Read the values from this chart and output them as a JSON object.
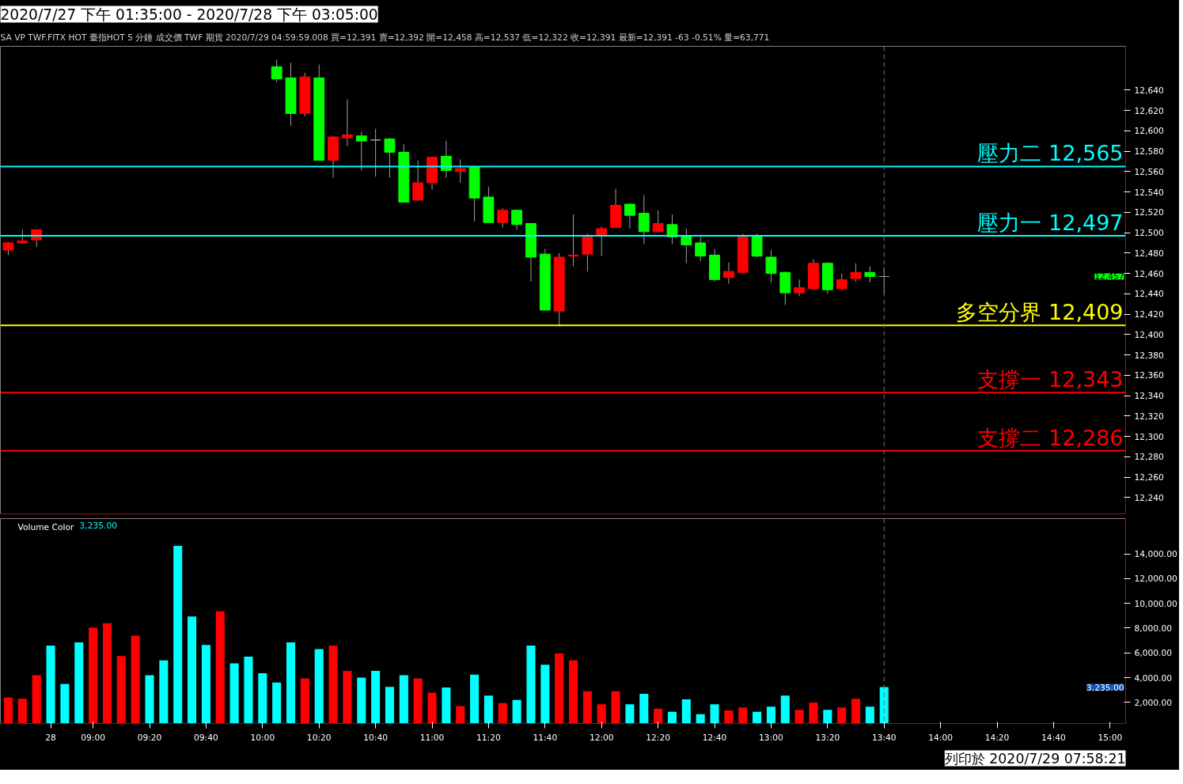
{
  "chart_data": [
    {
      "type": "candlestick",
      "title": "2020/7/27 下午 01:35:00 - 2020/7/28 下午 03:05:00",
      "subtitle": "SA  VP  TWF.FITX HOT  臺指HOT 5 分鐘  成交價  TWF  期貨  2020/7/29  04:59:59.008  買=12,391  賣=12,392  開=12,458  高=12,537  低=12,322  收=12,391  最新=12,391  -63  -0.51%  量=63,771",
      "categories": [
        null,
        null,
        null,
        "28",
        null,
        null,
        "09:00",
        null,
        null,
        null,
        "09:20",
        null,
        null,
        null,
        "09:40",
        null,
        null,
        null,
        "10:00",
        null,
        null,
        null,
        "10:20",
        null,
        null,
        null,
        "10:40",
        null,
        null,
        null,
        "11:00",
        null,
        null,
        null,
        "11:20",
        null,
        null,
        null,
        "11:40",
        null,
        null,
        null,
        "12:00",
        null,
        null,
        null,
        "12:20",
        null,
        null,
        null,
        "12:40",
        null,
        null,
        null,
        "13:00",
        null,
        null,
        null,
        "13:20",
        null,
        null,
        null,
        "13:40",
        null,
        null,
        null,
        "14:00",
        null,
        null,
        null,
        "14:20",
        null,
        null,
        null,
        "14:40",
        null,
        null,
        null,
        "15:00"
      ],
      "ohlc": [
        [
          12483,
          12491,
          12478,
          12490
        ],
        [
          12490,
          12503,
          12489,
          12492
        ],
        [
          12493,
          12503,
          12486,
          12503
        ],
        null,
        null,
        null,
        null,
        null,
        null,
        null,
        null,
        null,
        null,
        null,
        null,
        null,
        null,
        null,
        null,
        [
          12663,
          12670,
          12648,
          12651
        ],
        [
          12652,
          12667,
          12605,
          12617
        ],
        [
          12617,
          12657,
          12614,
          12653
        ],
        [
          12652,
          12665,
          12571,
          12571
        ],
        [
          12571,
          12595,
          12554,
          12594
        ],
        [
          12593,
          12631,
          12585,
          12596
        ],
        [
          12595,
          12599,
          12561,
          12590
        ],
        [
          12591,
          12602,
          12555,
          12591
        ],
        [
          12592,
          12593,
          12554,
          12579
        ],
        [
          12579,
          12587,
          12530,
          12530
        ],
        [
          12532,
          12571,
          12531,
          12549
        ],
        [
          12549,
          12574,
          12542,
          12574
        ],
        [
          12575,
          12590,
          12554,
          12561
        ],
        [
          12560,
          12572,
          12549,
          12563
        ],
        [
          12564,
          12564,
          12511,
          12534
        ],
        [
          12535,
          12545,
          12510,
          12510
        ],
        [
          12510,
          12524,
          12505,
          12522
        ],
        [
          12522,
          12523,
          12503,
          12508
        ],
        [
          12509,
          12509,
          12452,
          12476
        ],
        [
          12479,
          12484,
          12424,
          12424
        ],
        [
          12423,
          12480,
          12408,
          12476
        ],
        [
          12477,
          12518,
          12467,
          12478
        ],
        [
          12479,
          12499,
          12462,
          12496
        ],
        [
          12498,
          12506,
          12477,
          12504
        ],
        [
          12505,
          12543,
          12505,
          12527
        ],
        [
          12528,
          12529,
          12504,
          12517
        ],
        [
          12519,
          12537,
          12489,
          12501
        ],
        [
          12501,
          12522,
          12500,
          12509
        ],
        [
          12508,
          12518,
          12489,
          12496
        ],
        [
          12497,
          12504,
          12470,
          12488
        ],
        [
          12490,
          12496,
          12472,
          12477
        ],
        [
          12478,
          12484,
          12452,
          12454
        ],
        [
          12456,
          12471,
          12450,
          12462
        ],
        [
          12461,
          12499,
          12460,
          12496
        ],
        [
          12496,
          12499,
          12476,
          12477
        ],
        [
          12476,
          12483,
          12451,
          12460
        ],
        [
          12461,
          12462,
          12429,
          12441
        ],
        [
          12441,
          12454,
          12438,
          12446
        ],
        [
          12445,
          12474,
          12444,
          12470
        ],
        [
          12470,
          12471,
          12440,
          12444
        ],
        [
          12445,
          12460,
          12444,
          12454
        ],
        [
          12455,
          12470,
          12452,
          12461
        ],
        [
          12461,
          12467,
          12451,
          12457
        ],
        [
          12457,
          12466,
          12440,
          12457
        ],
        null,
        null,
        null,
        null,
        null,
        null,
        null,
        null,
        null,
        null,
        null,
        null,
        null,
        null,
        null,
        null
      ],
      "colors": [
        "#ff0000",
        "#ff0000",
        "#ff0000",
        null,
        null,
        null,
        null,
        null,
        null,
        null,
        null,
        null,
        null,
        null,
        null,
        null,
        null,
        null,
        null,
        "#00ff00",
        "#00ff00",
        "#ff0000",
        "#00ff00",
        "#ff0000",
        "#ff0000",
        "#00ff00",
        "#a0a0a0",
        "#00ff00",
        "#00ff00",
        "#ff0000",
        "#ff0000",
        "#00ff00",
        "#ff0000",
        "#00ff00",
        "#00ff00",
        "#ff0000",
        "#00ff00",
        "#00ff00",
        "#00ff00",
        "#ff0000",
        "#ff0000",
        "#ff0000",
        "#ff0000",
        "#ff0000",
        "#00ff00",
        "#00ff00",
        "#ff0000",
        "#00ff00",
        "#00ff00",
        "#00ff00",
        "#00ff00",
        "#ff0000",
        "#ff0000",
        "#00ff00",
        "#00ff00",
        "#00ff00",
        "#ff0000",
        "#ff0000",
        "#00ff00",
        "#ff0000",
        "#ff0000",
        "#00ff00",
        "#a0a0a0",
        null,
        null,
        null,
        null,
        null,
        null,
        null,
        null,
        null,
        null,
        null,
        null,
        null,
        null,
        null,
        null
      ],
      "ylim": [
        12224,
        12683
      ],
      "yticks": [
        {
          "value": 12240,
          "label": "12,240"
        },
        {
          "value": 12260,
          "label": "12,260"
        },
        {
          "value": 12280,
          "label": "12,280"
        },
        {
          "value": 12300,
          "label": "12,300"
        },
        {
          "value": 12320,
          "label": "12,320"
        },
        {
          "value": 12340,
          "label": "12,340"
        },
        {
          "value": 12360,
          "label": "12,360"
        },
        {
          "value": 12380,
          "label": "12,380"
        },
        {
          "value": 12400,
          "label": "12,400"
        },
        {
          "value": 12420,
          "label": "12,420"
        },
        {
          "value": 12440,
          "label": "12,440"
        },
        {
          "value": 12460,
          "label": "12,460"
        },
        {
          "value": 12480,
          "label": "12,480"
        },
        {
          "value": 12500,
          "label": "12,500"
        },
        {
          "value": 12520,
          "label": "12,520"
        },
        {
          "value": 12540,
          "label": "12,540"
        },
        {
          "value": 12560,
          "label": "12,560"
        },
        {
          "value": 12580,
          "label": "12,580"
        },
        {
          "value": 12600,
          "label": "12,600"
        },
        {
          "value": 12620,
          "label": "12,620"
        },
        {
          "value": 12640,
          "label": "12,640"
        }
      ],
      "tick_labels": "y",
      "grid": false,
      "ref_lines": [
        {
          "axis": "y",
          "value": 12565,
          "label": "壓力二 12,565",
          "color": "#00ffff"
        },
        {
          "axis": "y",
          "value": 12497,
          "label": "壓力一 12,497",
          "color": "#00ffff"
        },
        {
          "axis": "y",
          "value": 12409,
          "label": "多空分界 12,409",
          "color": "#ffff00"
        },
        {
          "axis": "y",
          "value": 12343,
          "label": "支撐一 12,343",
          "color": "#ff0000"
        },
        {
          "axis": "y",
          "value": 12286,
          "label": "支撐二 12,286",
          "color": "#ff0000"
        },
        {
          "axis": "x",
          "value": "13:40",
          "color": "#707070",
          "line_style": "dashed"
        }
      ],
      "annotations": [
        "12,457"
      ]
    },
    {
      "type": "bar",
      "title": "Volume Color",
      "subtitle": "3,235.00",
      "categories": [
        null,
        null,
        null,
        "28",
        null,
        null,
        "09:00",
        null,
        null,
        null,
        "09:20",
        null,
        null,
        null,
        "09:40",
        null,
        null,
        null,
        "10:00",
        null,
        null,
        null,
        "10:20",
        null,
        null,
        null,
        "10:40",
        null,
        null,
        null,
        "11:00",
        null,
        null,
        null,
        "11:20",
        null,
        null,
        null,
        "11:40",
        null,
        null,
        null,
        "12:00",
        null,
        null,
        null,
        "12:20",
        null,
        null,
        null,
        "12:40",
        null,
        null,
        null,
        "13:00",
        null,
        null,
        null,
        "13:20",
        null,
        null,
        null,
        "13:40",
        null,
        null,
        null,
        "14:00",
        null,
        null,
        null,
        "14:20",
        null,
        null,
        null,
        "14:40",
        null,
        null,
        null,
        "15:00"
      ],
      "values": [
        2400,
        2300,
        4200,
        6600,
        3500,
        6850,
        8050,
        8400,
        5750,
        7400,
        4200,
        5400,
        14650,
        8950,
        6650,
        9350,
        5150,
        5700,
        4350,
        3600,
        6850,
        3950,
        6300,
        6600,
        4550,
        4000,
        4550,
        3250,
        4200,
        3950,
        2800,
        3200,
        1700,
        4250,
        2550,
        1950,
        2200,
        6600,
        5050,
        5950,
        5400,
        2900,
        1850,
        2900,
        1850,
        2700,
        1500,
        1250,
        2250,
        1050,
        1850,
        1350,
        1600,
        1250,
        1650,
        2550,
        1400,
        2000,
        1400,
        1600,
        2300,
        1650,
        3235,
        null,
        null,
        null,
        null,
        null,
        null,
        null,
        null,
        null,
        null,
        null,
        null,
        null,
        null,
        null,
        null
      ],
      "colors": [
        "#ff0000",
        "#ff0000",
        "#ff0000",
        "#00ffff",
        "#00ffff",
        "#00ffff",
        "#ff0000",
        "#ff0000",
        "#ff0000",
        "#ff0000",
        "#00ffff",
        "#00ffff",
        "#00ffff",
        "#00ffff",
        "#00ffff",
        "#ff0000",
        "#00ffff",
        "#00ffff",
        "#00ffff",
        "#00ffff",
        "#00ffff",
        "#ff0000",
        "#00ffff",
        "#ff0000",
        "#ff0000",
        "#00ffff",
        "#00ffff",
        "#00ffff",
        "#00ffff",
        "#ff0000",
        "#ff0000",
        "#00ffff",
        "#ff0000",
        "#00ffff",
        "#00ffff",
        "#ff0000",
        "#00ffff",
        "#00ffff",
        "#00ffff",
        "#ff0000",
        "#ff0000",
        "#ff0000",
        "#ff0000",
        "#ff0000",
        "#00ffff",
        "#00ffff",
        "#ff0000",
        "#00ffff",
        "#00ffff",
        "#00ffff",
        "#00ffff",
        "#ff0000",
        "#ff0000",
        "#00ffff",
        "#00ffff",
        "#00ffff",
        "#ff0000",
        "#ff0000",
        "#00ffff",
        "#ff0000",
        "#ff0000",
        "#00ffff",
        "#00ffff",
        null,
        null,
        null,
        null,
        null,
        null,
        null,
        null,
        null,
        null,
        null,
        null,
        null,
        null,
        null,
        null
      ],
      "ylim": [
        300,
        16850
      ],
      "yticks": [
        {
          "value": 2000,
          "label": "2,000.00"
        },
        {
          "value": 4000,
          "label": "4,000.00"
        },
        {
          "value": 6000,
          "label": "6,000.00"
        },
        {
          "value": 8000,
          "label": "8,000.00"
        },
        {
          "value": 10000,
          "label": "10,000.00"
        },
        {
          "value": 12000,
          "label": "12,000.00"
        },
        {
          "value": 14000,
          "label": "14,000.00"
        }
      ],
      "grid": false,
      "ref_lines": [
        {
          "axis": "x",
          "value": "13:40",
          "color": "#707070",
          "line_style": "dashed"
        }
      ],
      "annotations": [
        "3,235.00",
        "列印於 2020/7/29 07:58:21"
      ]
    }
  ]
}
